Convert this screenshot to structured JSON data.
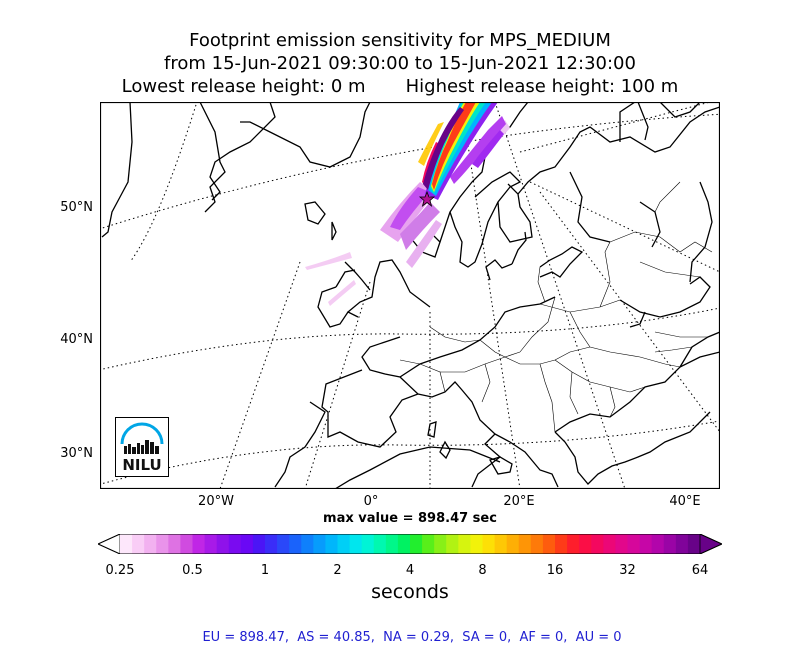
{
  "title": {
    "line1": "Footprint emission sensitivity for MPS_MEDIUM",
    "line2": "from 15-Jun-2021 09:30:00 to 15-Jun-2021 12:30:00",
    "lowest": "Lowest release height: 0 m",
    "highest": "Highest release height: 100 m"
  },
  "map": {
    "lat_labels": [
      "50°N",
      "40°N",
      "30°N"
    ],
    "lon_labels": [
      "20°W",
      "0°",
      "20°E",
      "40°E"
    ],
    "projection": "polar-stereographic",
    "gridlines": "dotted",
    "release_site_marker": "star",
    "logo_text": "NILU"
  },
  "max_value": "max value = 898.47 sec",
  "colorbar": {
    "ticks": [
      "0.25",
      "0.5",
      "1",
      "2",
      "4",
      "8",
      "16",
      "32",
      "64"
    ],
    "units": "seconds",
    "colors": [
      "#fde7fb",
      "#f9cdf6",
      "#f2b1f0",
      "#e993ea",
      "#de72e3",
      "#d04be0",
      "#c026e6",
      "#a81ae8",
      "#8f12ea",
      "#7a0bf0",
      "#6a08f5",
      "#4b15f6",
      "#3a2df8",
      "#2a48f9",
      "#1a63fb",
      "#0f80fc",
      "#079cfc",
      "#00b6fb",
      "#00cff6",
      "#00e6ee",
      "#00f4d6",
      "#00f8b0",
      "#00f78a",
      "#00f262",
      "#22ee2e",
      "#58ef1a",
      "#88f017",
      "#b1f213",
      "#d6f40f",
      "#f2f20a",
      "#fde006",
      "#fec805",
      "#feaf05",
      "#fe9506",
      "#fe7a09",
      "#fe5c0e",
      "#fe3b18",
      "#fe1e2c",
      "#fb0e46",
      "#f4085f",
      "#ec0777",
      "#e2078b",
      "#d6079b",
      "#c606a7",
      "#b205ab",
      "#9a04a6",
      "#80039a",
      "#680288"
    ]
  },
  "stats": "EU = 898.47,  AS = 40.85,  NA = 0.29,  SA = 0,  AF = 0,  AU = 0"
}
